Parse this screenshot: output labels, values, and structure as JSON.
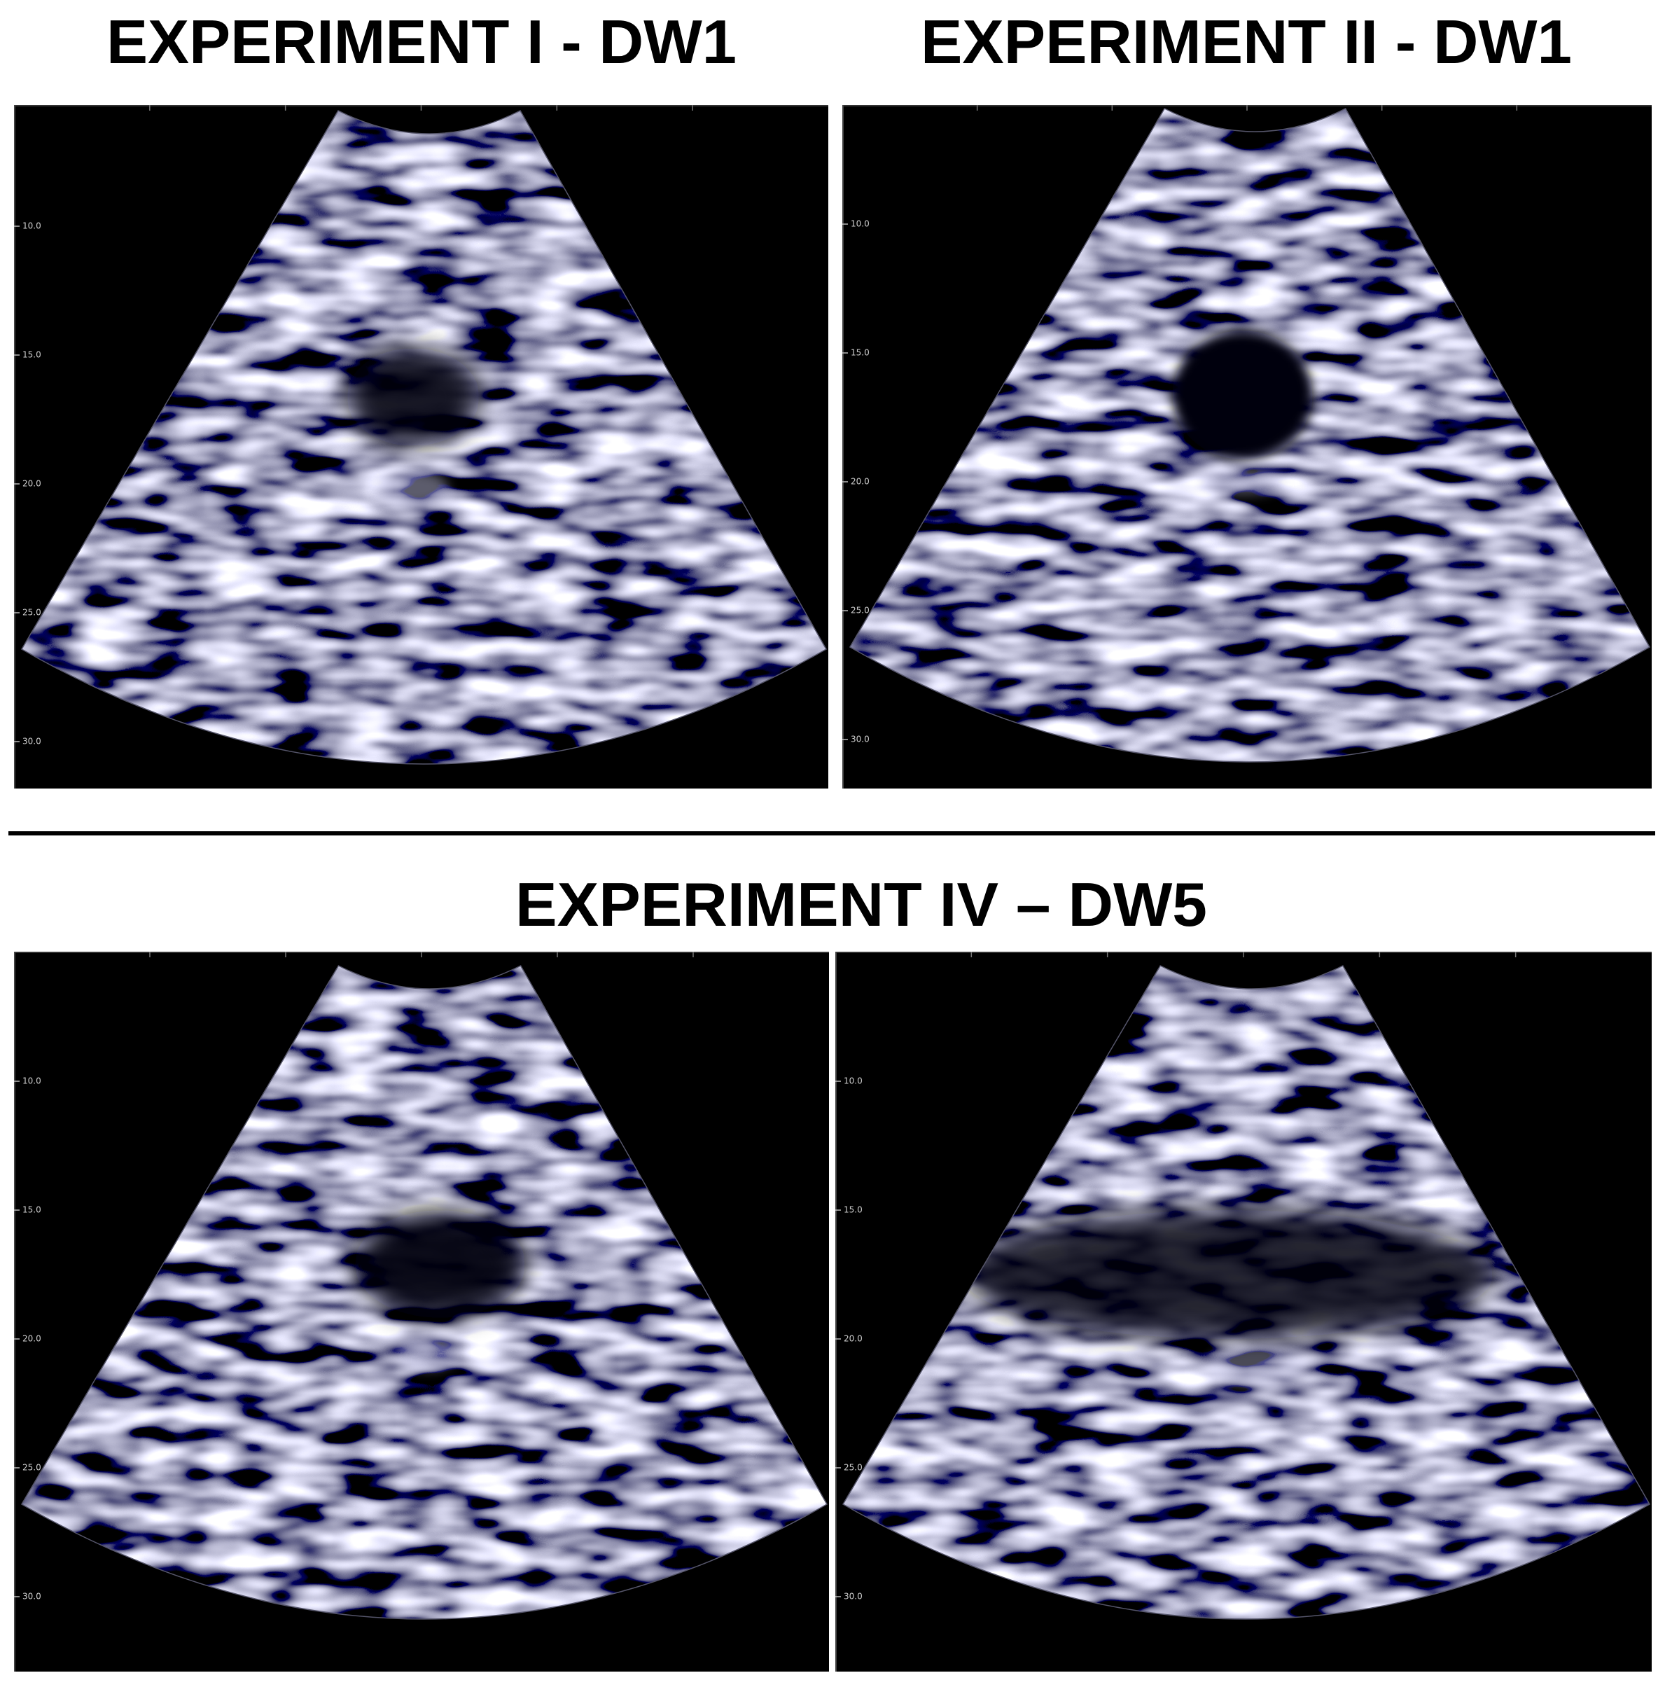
{
  "titles": [
    "EXPERIMENT I - DW1",
    "EXPERIMENT II - DW1",
    "EXPERIMENT IV – DW5"
  ],
  "panels": [
    {
      "depth_labels": [
        "10.0",
        "15.0",
        "20.0",
        "25.0",
        "30.0"
      ]
    },
    {
      "depth_labels": [
        "10.0",
        "15.0",
        "20.0",
        "25.0",
        "30.0"
      ]
    },
    {
      "depth_labels": [
        "10.0",
        "15.0",
        "20.0",
        "25.0",
        "30.0"
      ]
    },
    {
      "depth_labels": [
        "10.0",
        "15.0",
        "20.0",
        "25.0",
        "30.0"
      ]
    }
  ]
}
